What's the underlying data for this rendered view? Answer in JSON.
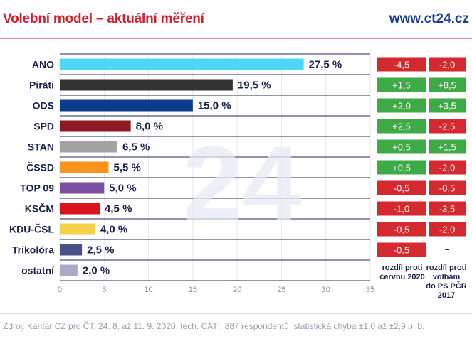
{
  "header": {
    "title": "Volební model – aktuální měření",
    "site": "www.ct24.cz"
  },
  "watermark": "24",
  "source": "Zdroj: Kantar CZ pro ČT, 24. 8. až 11. 9. 2020, tech. CATI, 887 respondentů, statistická chyba ±1,0 až ±2,9 p. b.",
  "chart_data": {
    "type": "bar",
    "orientation": "horizontal",
    "categories": [
      "ANO",
      "Piráti",
      "ODS",
      "SPD",
      "STAN",
      "ČSSD",
      "TOP 09",
      "KSČM",
      "KDU-ČSL",
      "Trikolóra",
      "ostatní"
    ],
    "values": [
      27.5,
      19.5,
      15.0,
      8.0,
      6.5,
      5.5,
      5.0,
      4.5,
      4.0,
      2.5,
      2.0
    ],
    "value_labels": [
      "27,5 %",
      "19,5 %",
      "15,0 %",
      "8,0 %",
      "6,5 %",
      "5,5 %",
      "5,0 %",
      "4,5 %",
      "4,0 %",
      "2,5 %",
      "2,0 %"
    ],
    "colors": [
      "#4fd5f5",
      "#333333",
      "#0c3d8c",
      "#8b1a24",
      "#a3a3a3",
      "#f7941d",
      "#7b4fa0",
      "#d9141e",
      "#f7d04a",
      "#4a5185",
      "#a9aac8"
    ],
    "xlim": [
      0,
      35
    ],
    "xticks": [
      0,
      5,
      10,
      15,
      20,
      25,
      30,
      35
    ],
    "grid": true,
    "comparisons": [
      {
        "label": "rozdíl proti červnu 2020",
        "values": [
          "-4,5",
          "+1,5",
          "+2,0",
          "+2,5",
          "+0,5",
          "+0,5",
          "-0,5",
          "-1,0",
          "-0,5",
          "-0,5",
          null
        ]
      },
      {
        "label": "rozdíl proti volbám do PS PČR 2017",
        "values": [
          "-2,0",
          "+8,5",
          "+3,5",
          "-2,5",
          "+1,5",
          "-2,0",
          "-0,5",
          "-3,5",
          "-2,0",
          "–",
          null
        ]
      }
    ],
    "positive_color": "#3daa45",
    "negative_color": "#d42a2f"
  }
}
